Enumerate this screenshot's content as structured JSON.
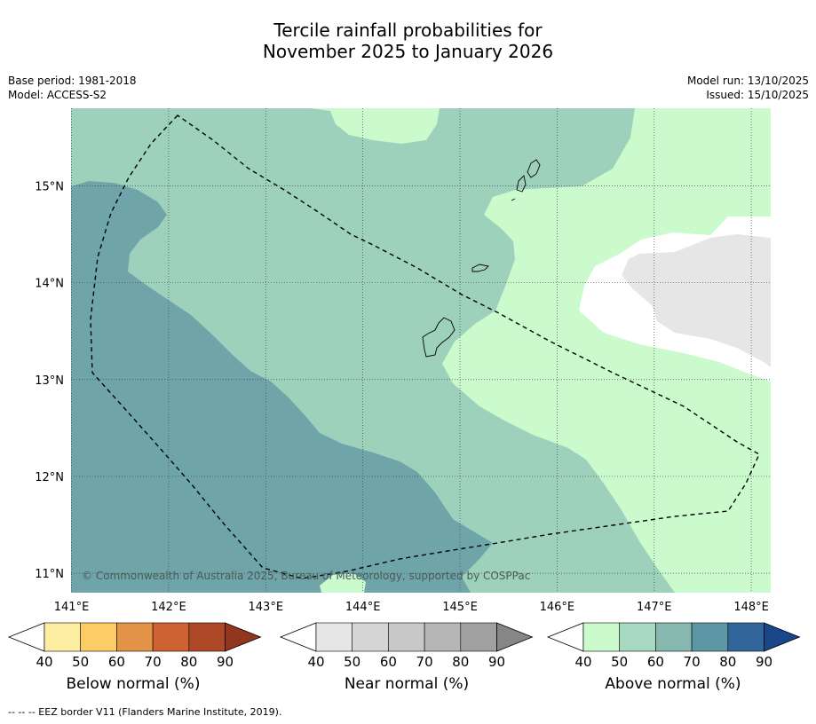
{
  "title": {
    "line1": "Tercile rainfall probabilities for",
    "line2": "November 2025 to January 2026"
  },
  "meta": {
    "base_period": "Base period: 1981-2018",
    "model": "Model: ACCESS-S2",
    "model_run": "Model run: 13/10/2025",
    "issued": "Issued: 15/10/2025"
  },
  "map": {
    "lon_labels": [
      "141°E",
      "142°E",
      "143°E",
      "144°E",
      "145°E",
      "146°E",
      "147°E",
      "148°E"
    ],
    "lat_labels": [
      "15°N",
      "14°N",
      "13°N",
      "12°N",
      "11°N"
    ],
    "copyright": "© Commonwealth of Australia 2025, Bureau of Meteorology, supported by COSPPac",
    "extent": {
      "lon_min": 140.995,
      "lon_max": 148.2,
      "lat_min": 10.8,
      "lat_max": 15.8
    }
  },
  "colorbars": [
    {
      "name": "below",
      "label": "Below normal (%)",
      "ticks": [
        "40",
        "50",
        "60",
        "70",
        "80",
        "90"
      ],
      "colors": [
        "#ffffff",
        "#fdeda0",
        "#fdcc64",
        "#e29347",
        "#cd6232",
        "#ae4827",
        "#93361e"
      ]
    },
    {
      "name": "near",
      "label": "Near normal (%)",
      "ticks": [
        "40",
        "50",
        "60",
        "70",
        "80",
        "90"
      ],
      "colors": [
        "#ffffff",
        "#e6e6e6",
        "#d5d5d5",
        "#c8c8c8",
        "#b5b5b5",
        "#a0a0a0",
        "#868686"
      ]
    },
    {
      "name": "above",
      "label": "Above normal (%)",
      "ticks": [
        "40",
        "50",
        "60",
        "70",
        "80",
        "90"
      ],
      "colors": [
        "#ffffff",
        "#cbfacd",
        "#a7d9c0",
        "#86b8b0",
        "#5d97a5",
        "#32669a",
        "#19478a"
      ]
    }
  ],
  "footnote": "--  --  -- EEZ border V11 (Flanders Marine Institute, 2019)."
}
